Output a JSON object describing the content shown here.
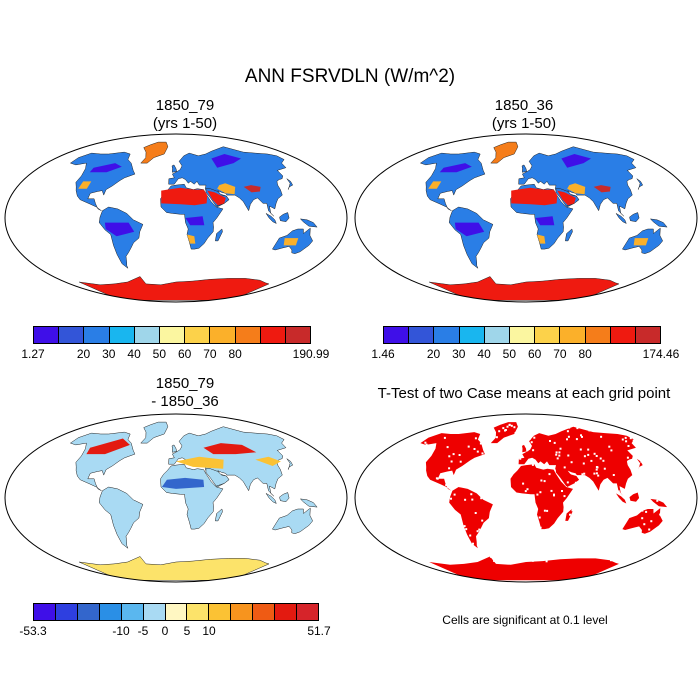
{
  "figure": {
    "title": "ANN FSRVDLN (W/m^2)",
    "note": "Cells are significant at 0.1 level"
  },
  "panels": [
    {
      "title_line1": "1850_79",
      "title_line2": "(yrs 1-50)",
      "colorbar": {
        "colors": [
          "#3f0fe8",
          "#3355d8",
          "#2a7ee6",
          "#19b6ef",
          "#9fd6ea",
          "#fbf6a0",
          "#fcd24a",
          "#fbb02a",
          "#f57d1a",
          "#ef1a10",
          "#c82a2a"
        ],
        "labels": [
          "1.27",
          "20",
          "30",
          "40",
          "50",
          "60",
          "70",
          "80",
          "190.99"
        ]
      }
    },
    {
      "title_line1": "1850_36",
      "title_line2": "(yrs 1-50)",
      "colorbar": {
        "colors": [
          "#3f0fe8",
          "#3355d8",
          "#2a7ee6",
          "#19b6ef",
          "#9fd6ea",
          "#fbf6a0",
          "#fcd24a",
          "#fbb02a",
          "#f57d1a",
          "#ef1a10",
          "#c82a2a"
        ],
        "labels": [
          "1.46",
          "20",
          "30",
          "40",
          "50",
          "60",
          "70",
          "80",
          "174.46"
        ]
      }
    },
    {
      "title_line1": "1850_79",
      "title_line2": "- 1850_36",
      "colorbar": {
        "colors": [
          "#3f0fe8",
          "#2e3fe0",
          "#3366cc",
          "#2a8fe6",
          "#5ab7ef",
          "#a9daf3",
          "#fff7c2",
          "#fce36a",
          "#fbc234",
          "#f7941e",
          "#ef5b14",
          "#e31a10",
          "#d6242a"
        ],
        "labels": [
          "-53.3",
          "-10",
          "-5",
          "0",
          "5",
          "10",
          "51.7"
        ]
      }
    },
    {
      "title_line1": "T-Test of two Case means at each grid point"
    }
  ],
  "map_palettes": {
    "panel1": {
      "ocean": "#ffffff",
      "land_base": "#2a7ee6",
      "desert": "#ef1a10",
      "arid": "#fbb02a",
      "cold": "#3f0fe8",
      "antarctica": "#ef1a10",
      "greenland": "#f57d1a",
      "tibet": "#c82a2a"
    },
    "panel2": {
      "ocean": "#ffffff",
      "land_base": "#2a7ee6",
      "desert": "#ef1a10",
      "arid": "#fbb02a",
      "cold": "#3f0fe8",
      "antarctica": "#ef1a10",
      "greenland": "#f57d1a",
      "tibet": "#c82a2a"
    },
    "panel3": {
      "ocean": "#ffffff",
      "land_base": "#a9daf3",
      "positive": "#fbc234",
      "strong_positive": "#e31a10",
      "negative": "#3366cc",
      "antarctica": "#fce36a"
    },
    "panel4": {
      "ocean": "#ffffff",
      "land_base": "#ee0000"
    }
  }
}
